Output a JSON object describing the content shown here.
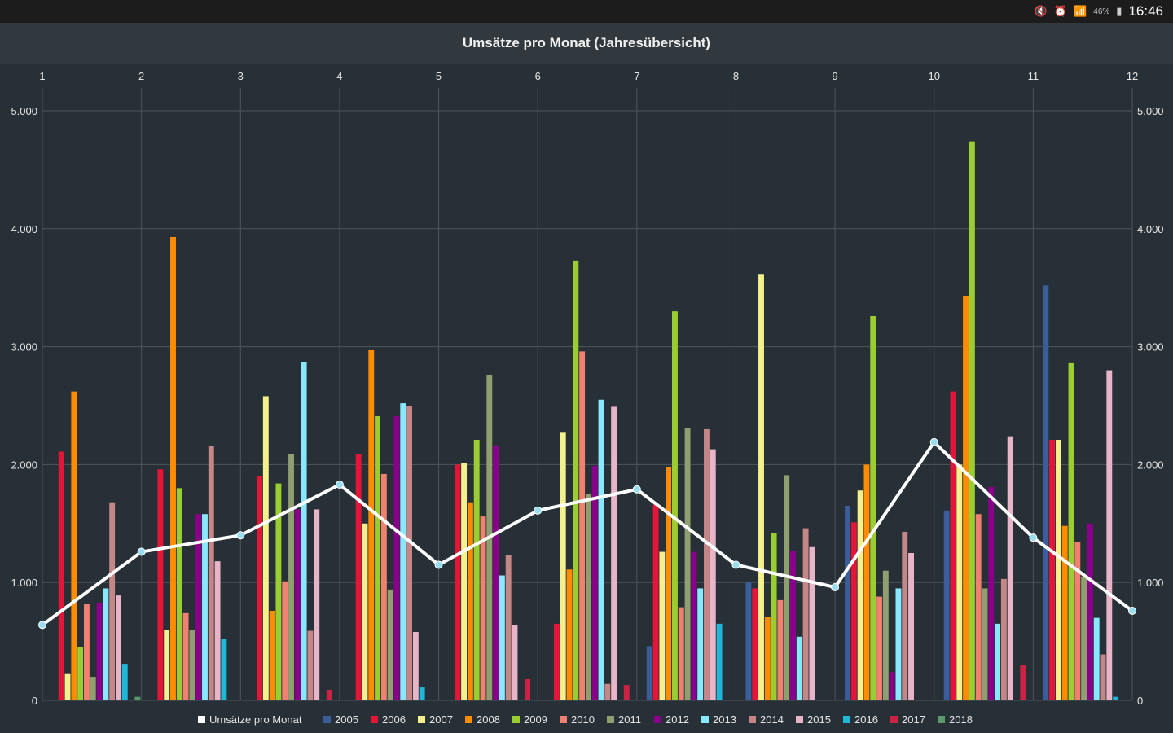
{
  "status": {
    "time": "16:46",
    "battery": "46%",
    "icons": [
      "mute-icon",
      "alarm-icon",
      "wifi-icon",
      "battery-icon"
    ]
  },
  "title": "Umsätze pro Monat (Jahresübersicht)",
  "chart_data": {
    "type": "bar",
    "title": "Umsätze pro Monat (Jahresübersicht)",
    "categories": [
      "1",
      "2",
      "3",
      "4",
      "5",
      "6",
      "7",
      "8",
      "9",
      "10",
      "11",
      "12"
    ],
    "ylim": [
      0,
      5000
    ],
    "y_ticks": [
      "0",
      "1.000",
      "2.000",
      "3.000",
      "4.000",
      "5.000"
    ],
    "y_tick_values": [
      0,
      1000,
      2000,
      3000,
      4000,
      5000
    ],
    "grid": true,
    "legend_position": "bottom",
    "series": [
      {
        "name": "2005",
        "color": "#3a5d9c",
        "values": [
          0,
          0,
          0,
          0,
          0,
          0,
          460,
          1000,
          1650,
          1610,
          3520,
          0
        ]
      },
      {
        "name": "2006",
        "color": "#e3163a",
        "values": [
          2110,
          1960,
          1900,
          2090,
          2000,
          650,
          1660,
          950,
          1510,
          2620,
          2210,
          0
        ]
      },
      {
        "name": "2007",
        "color": "#f4f08c",
        "values": [
          230,
          600,
          2580,
          1500,
          2010,
          2270,
          1260,
          3610,
          1780,
          2000,
          2210,
          0
        ]
      },
      {
        "name": "2008",
        "color": "#ff8c00",
        "values": [
          2620,
          3930,
          760,
          2970,
          1680,
          1110,
          1980,
          710,
          2000,
          3430,
          1480,
          0
        ]
      },
      {
        "name": "2009",
        "color": "#9acd32",
        "values": [
          450,
          1800,
          1840,
          2410,
          2210,
          3730,
          3300,
          1420,
          3260,
          4740,
          2860,
          0
        ]
      },
      {
        "name": "2010",
        "color": "#f08070",
        "values": [
          820,
          740,
          1010,
          1920,
          1560,
          2960,
          790,
          850,
          880,
          1580,
          1340,
          0
        ]
      },
      {
        "name": "2011",
        "color": "#8f9f6f",
        "values": [
          200,
          600,
          2090,
          940,
          2760,
          1750,
          2310,
          1910,
          1100,
          950,
          1050,
          0
        ]
      },
      {
        "name": "2012",
        "color": "#8b008b",
        "values": [
          830,
          1580,
          1620,
          2410,
          2160,
          1990,
          1260,
          1270,
          240,
          1810,
          1500,
          0
        ]
      },
      {
        "name": "2013",
        "color": "#87e8ff",
        "values": [
          950,
          1580,
          2870,
          2520,
          1060,
          2550,
          950,
          540,
          950,
          650,
          700,
          0
        ]
      },
      {
        "name": "2014",
        "color": "#c48686",
        "values": [
          1680,
          2160,
          590,
          2500,
          1230,
          140,
          2300,
          1460,
          1430,
          1030,
          390,
          0
        ]
      },
      {
        "name": "2015",
        "color": "#e8b4c8",
        "values": [
          890,
          1180,
          1620,
          580,
          640,
          2490,
          2130,
          1300,
          1250,
          2240,
          2800,
          0
        ]
      },
      {
        "name": "2016",
        "color": "#1fb8d8",
        "values": [
          310,
          520,
          0,
          110,
          0,
          0,
          650,
          0,
          0,
          0,
          30,
          0
        ]
      },
      {
        "name": "2017",
        "color": "#cc2244",
        "values": [
          0,
          0,
          90,
          0,
          180,
          130,
          0,
          0,
          0,
          300,
          0,
          0
        ]
      },
      {
        "name": "2018",
        "color": "#5a9a6e",
        "values": [
          30,
          0,
          0,
          0,
          0,
          0,
          0,
          0,
          0,
          0,
          0,
          0
        ]
      }
    ],
    "line_series": {
      "name": "Umsätze pro Monat",
      "color": "#ffffff",
      "marker_color": "#9adcf0",
      "values": [
        640,
        1260,
        1400,
        1830,
        1150,
        1610,
        1790,
        1150,
        960,
        2190,
        1380,
        760
      ]
    },
    "legend": [
      "Umsätze pro Monat",
      "2005",
      "2006",
      "2007",
      "2008",
      "2009",
      "2010",
      "2011",
      "2012",
      "2013",
      "2014",
      "2015",
      "2016",
      "2017",
      "2018"
    ]
  }
}
